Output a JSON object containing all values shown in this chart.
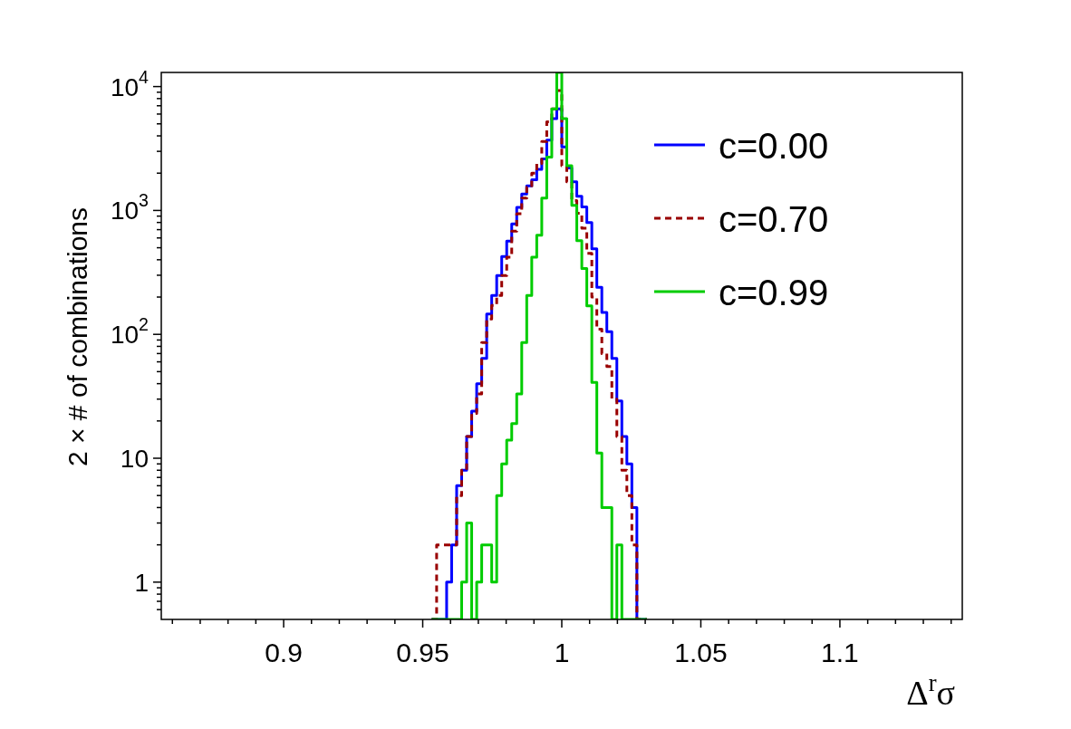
{
  "chart_data": {
    "type": "histogram",
    "xlabel": "Δ$^{r}$σ",
    "ylabel": "2 × # of combinations",
    "log": "y",
    "grid": false,
    "legend": "top right",
    "xlim": [
      0.856,
      1.144
    ],
    "ylim": [
      0.5,
      13000
    ],
    "xticks": [
      {
        "value": 0.86,
        "label": null
      },
      {
        "value": 0.87,
        "label": null
      },
      {
        "value": 0.88,
        "label": null
      },
      {
        "value": 0.89,
        "label": null
      },
      0.9,
      {
        "value": 0.91,
        "label": null
      },
      {
        "value": 0.92,
        "label": null
      },
      {
        "value": 0.93,
        "label": null
      },
      {
        "value": 0.94,
        "label": null
      },
      0.95,
      {
        "value": 0.96,
        "label": null
      },
      {
        "value": 0.97,
        "label": null
      },
      {
        "value": 0.98,
        "label": null
      },
      {
        "value": 0.99,
        "label": null
      },
      1,
      {
        "value": 1.01,
        "label": null
      },
      {
        "value": 1.02,
        "label": null
      },
      {
        "value": 1.03,
        "label": null
      },
      {
        "value": 1.04,
        "label": null
      },
      1.05,
      {
        "value": 1.06,
        "label": null
      },
      {
        "value": 1.07,
        "label": null
      },
      {
        "value": 1.08,
        "label": null
      },
      {
        "value": 1.09,
        "label": null
      },
      1.1,
      {
        "value": 1.11,
        "label": null
      },
      {
        "value": 1.12,
        "label": null
      },
      {
        "value": 1.13,
        "label": null
      },
      {
        "value": 1.14,
        "label": null
      }
    ],
    "yticks": [
      {
        "value": 0.6,
        "label": null
      },
      {
        "value": 0.7,
        "label": null
      },
      {
        "value": 0.8,
        "label": null
      },
      {
        "value": 0.9,
        "label": null
      },
      1,
      {
        "value": 2,
        "label": null
      },
      {
        "value": 3,
        "label": null
      },
      {
        "value": 4,
        "label": null
      },
      {
        "value": 5,
        "label": null
      },
      {
        "value": 6,
        "label": null
      },
      {
        "value": 7,
        "label": null
      },
      {
        "value": 8,
        "label": null
      },
      {
        "value": 9,
        "label": null
      },
      10,
      {
        "value": 20,
        "label": null
      },
      {
        "value": 30,
        "label": null
      },
      {
        "value": 40,
        "label": null
      },
      {
        "value": 50,
        "label": null
      },
      {
        "value": 60,
        "label": null
      },
      {
        "value": 70,
        "label": null
      },
      {
        "value": 80,
        "label": null
      },
      {
        "value": 90,
        "label": null
      },
      {
        "value": 100,
        "label": "10$^{2}$"
      },
      {
        "value": 200,
        "label": null
      },
      {
        "value": 300,
        "label": null
      },
      {
        "value": 400,
        "label": null
      },
      {
        "value": 500,
        "label": null
      },
      {
        "value": 600,
        "label": null
      },
      {
        "value": 700,
        "label": null
      },
      {
        "value": 800,
        "label": null
      },
      {
        "value": 900,
        "label": null
      },
      {
        "value": 1000,
        "label": "10$^{3}$"
      },
      {
        "value": 2000,
        "label": null
      },
      {
        "value": 3000,
        "label": null
      },
      {
        "value": 4000,
        "label": null
      },
      {
        "value": 5000,
        "label": null
      },
      {
        "value": 6000,
        "label": null
      },
      {
        "value": 7000,
        "label": null
      },
      {
        "value": 8000,
        "label": null
      },
      {
        "value": 9000,
        "label": null
      },
      {
        "value": 10000,
        "label": "10$^{4}$"
      }
    ],
    "bins": [
      0.9532,
      0.955,
      0.9568,
      0.9586,
      0.9604,
      0.9622,
      0.964,
      0.9658,
      0.9676,
      0.9694,
      0.9712,
      0.973,
      0.9748,
      0.9766,
      0.9784,
      0.9802,
      0.982,
      0.9838,
      0.9856,
      0.9874,
      0.9892,
      0.991,
      0.9928,
      0.9946,
      0.9964,
      0.9982,
      1.0,
      1.0018,
      1.0036,
      1.0054,
      1.0072,
      1.009,
      1.0108,
      1.0126,
      1.0144,
      1.0162,
      1.018,
      1.0198,
      1.0216,
      1.0234,
      1.0252,
      1.027,
      1.0288,
      1.0306
    ],
    "series": [
      {
        "name": "c=0.00",
        "color": "#0000ff",
        "line_style": "solid",
        "values": [
          null,
          null,
          null,
          1,
          2,
          6,
          8,
          15,
          24,
          40,
          64,
          146,
          206,
          298,
          425,
          565,
          780,
          1060,
          1360,
          1580,
          1770,
          2150,
          2600,
          3700,
          5500,
          6600,
          3250,
          2200,
          1700,
          1300,
          1070,
          800,
          490,
          240,
          150,
          105,
          64,
          29,
          15,
          9,
          4,
          null,
          null
        ]
      },
      {
        "name": "c=0.70",
        "color": "#990000",
        "line_style": "dashed",
        "values": [
          null,
          2,
          2,
          2,
          2,
          5,
          8,
          15,
          23,
          33,
          86,
          133,
          171,
          206,
          298,
          420,
          680,
          940,
          1260,
          1540,
          2000,
          2400,
          3600,
          5200,
          6600,
          9300,
          2300,
          1700,
          1200,
          950,
          720,
          450,
          200,
          110,
          70,
          55,
          30,
          15,
          8,
          5,
          2,
          null,
          null
        ]
      },
      {
        "name": "c=0.99",
        "color": "#00cc00",
        "line_style": "solid",
        "values": [
          null,
          null,
          null,
          null,
          null,
          null,
          1,
          3,
          null,
          1,
          2,
          2,
          1,
          5,
          9,
          14,
          19,
          33,
          86,
          206,
          420,
          630,
          1260,
          2700,
          6600,
          13000,
          5500,
          2300,
          1100,
          570,
          340,
          170,
          41,
          11,
          4,
          4,
          null,
          2,
          null,
          null,
          null,
          null,
          null
        ]
      }
    ]
  }
}
